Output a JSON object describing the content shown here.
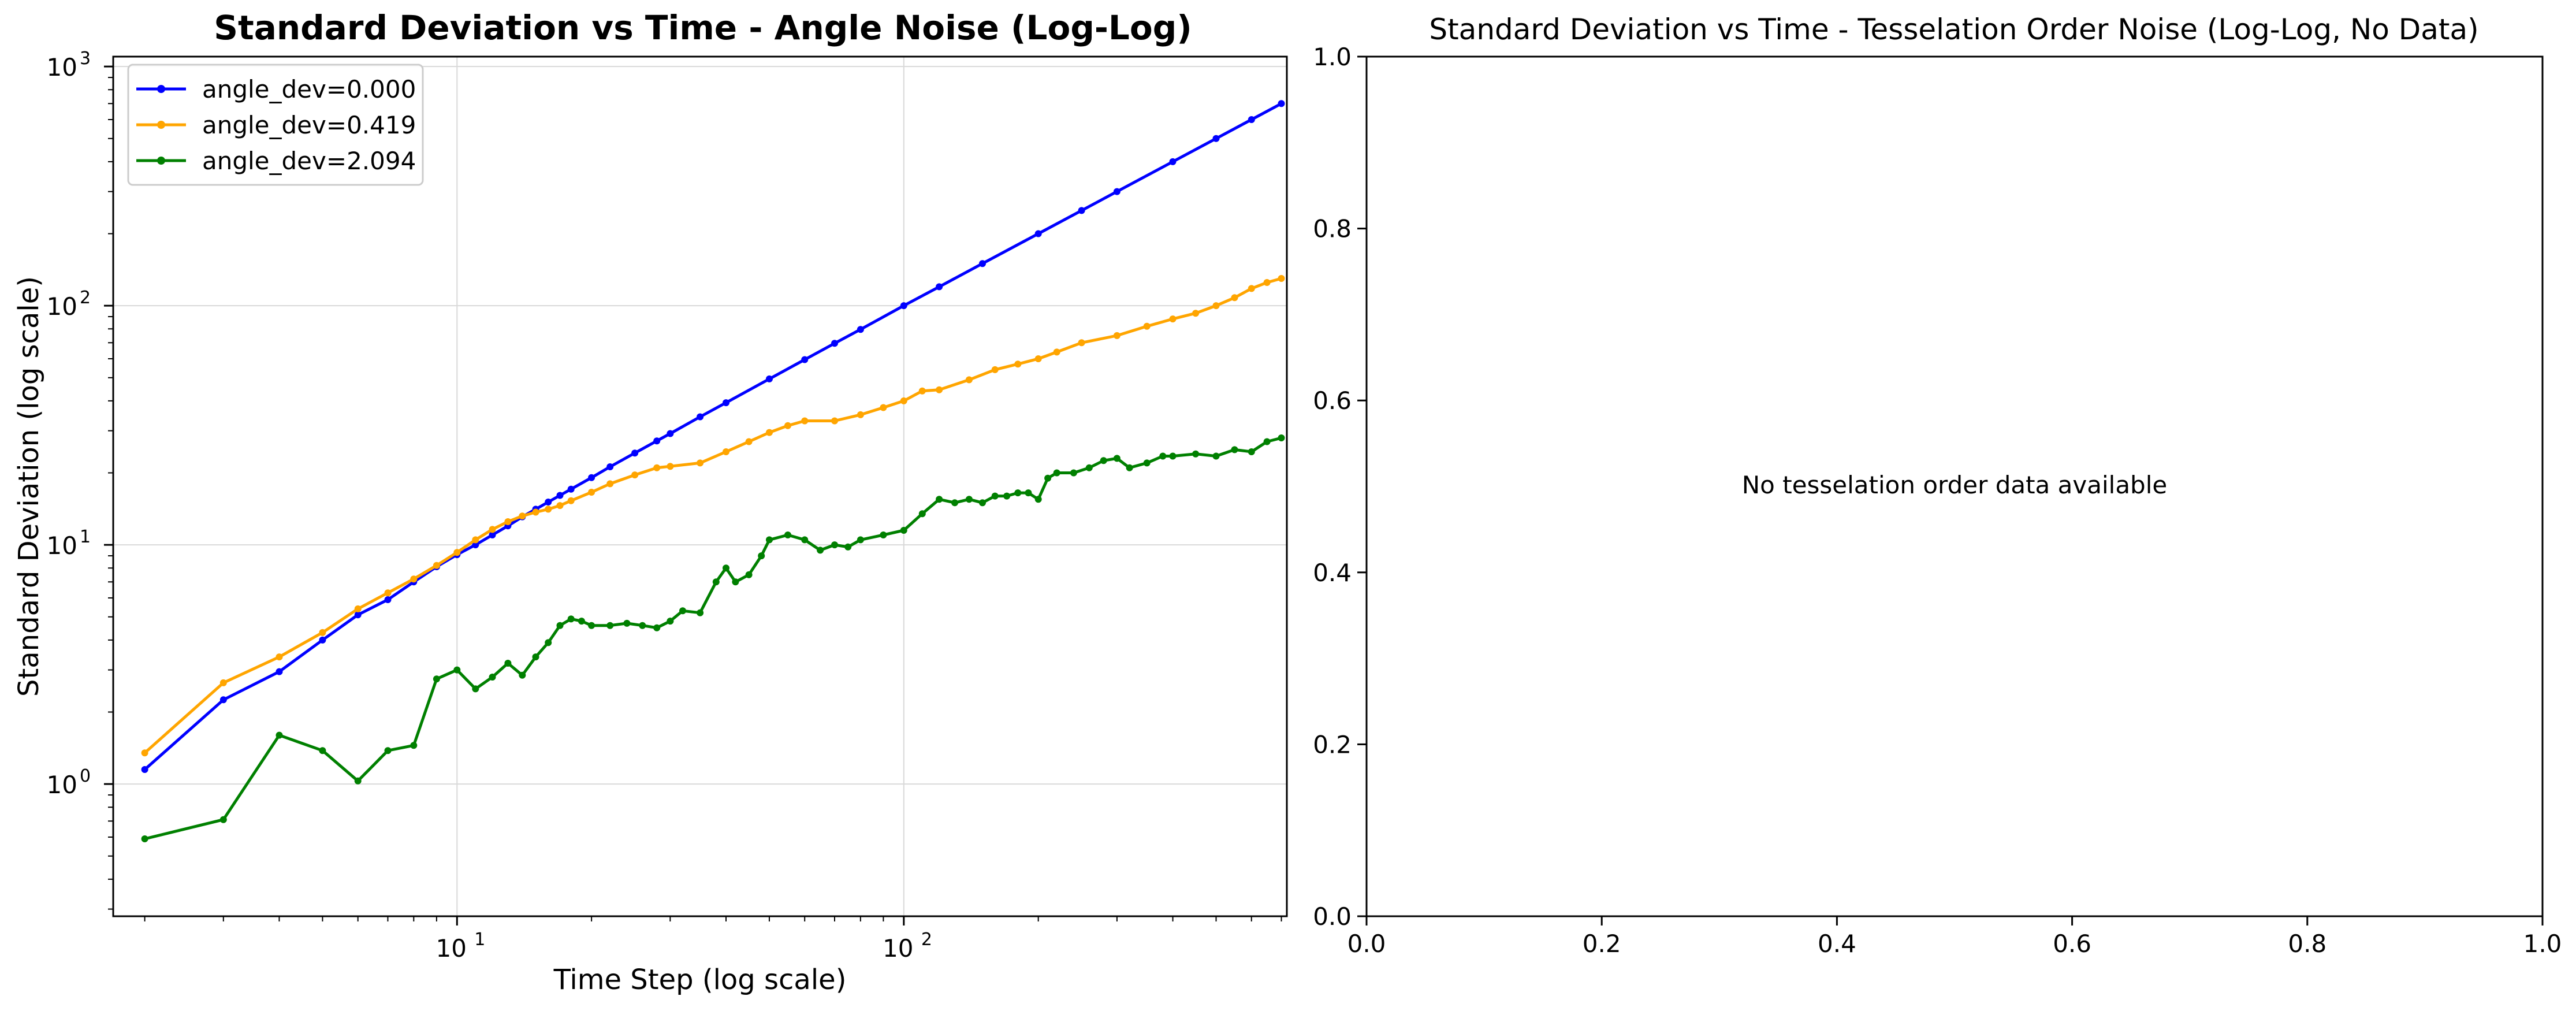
{
  "chart_data": [
    {
      "type": "line",
      "title": "Standard Deviation vs Time - Angle Noise (Log-Log)",
      "xlabel": "Time Step (log scale)",
      "ylabel": "Standard Deviation (log scale)",
      "xscale": "log",
      "yscale": "log",
      "xlim": [
        1.7,
        720
      ],
      "ylim": [
        0.28,
        1100
      ],
      "x_ticks": [
        {
          "value": 10,
          "base": "10",
          "exp": "1"
        },
        {
          "value": 100,
          "base": "10",
          "exp": "2"
        }
      ],
      "y_ticks": [
        {
          "value": 1,
          "base": "10",
          "exp": "0"
        },
        {
          "value": 10,
          "base": "10",
          "exp": "1"
        },
        {
          "value": 100,
          "base": "10",
          "exp": "2"
        },
        {
          "value": 1000,
          "base": "10",
          "exp": "3"
        }
      ],
      "grid": true,
      "legend_position": "top-left",
      "series": [
        {
          "name": "angle_dev=0.000",
          "color": "#0000ff",
          "x": [
            2,
            3,
            4,
            5,
            6,
            7,
            8,
            9,
            10,
            11,
            12,
            13,
            14,
            15,
            16,
            17,
            18,
            20,
            22,
            25,
            28,
            30,
            35,
            40,
            50,
            60,
            70,
            80,
            100,
            120,
            150,
            200,
            250,
            300,
            400,
            500,
            600,
            700
          ],
          "y": [
            1.15,
            2.25,
            2.95,
            4.0,
            5.1,
            5.9,
            7.0,
            8.1,
            9.1,
            10.0,
            11.0,
            12.0,
            13.1,
            14.1,
            15.1,
            16.1,
            17.1,
            19.1,
            21.2,
            24.2,
            27.2,
            29.2,
            34.3,
            39.3,
            49.4,
            59.5,
            69.6,
            79.6,
            100.0,
            120.0,
            150.0,
            200.0,
            250.0,
            300.0,
            400.0,
            500.0,
            600.0,
            700.0
          ]
        },
        {
          "name": "angle_dev=0.419",
          "color": "#ffa500",
          "x": [
            2,
            3,
            4,
            5,
            6,
            7,
            8,
            9,
            10,
            11,
            12,
            13,
            14,
            15,
            16,
            17,
            18,
            20,
            22,
            25,
            28,
            30,
            35,
            40,
            45,
            50,
            55,
            60,
            70,
            80,
            90,
            100,
            110,
            120,
            140,
            160,
            180,
            200,
            220,
            250,
            300,
            350,
            400,
            450,
            500,
            550,
            600,
            650,
            700
          ],
          "y": [
            1.35,
            2.65,
            3.4,
            4.3,
            5.4,
            6.3,
            7.2,
            8.2,
            9.3,
            10.5,
            11.6,
            12.5,
            13.2,
            13.7,
            14.1,
            14.6,
            15.3,
            16.6,
            18.0,
            19.6,
            21.0,
            21.3,
            22.0,
            24.5,
            27.0,
            29.5,
            31.5,
            33.0,
            33.0,
            35.0,
            37.5,
            40.0,
            44.0,
            44.5,
            49.0,
            54.0,
            57.0,
            60.0,
            64.0,
            70.0,
            75.0,
            82.0,
            88.0,
            93.0,
            100.0,
            108.0,
            118.0,
            125.0,
            130.0
          ]
        },
        {
          "name": "angle_dev=2.094",
          "color": "#008000",
          "x": [
            2,
            3,
            4,
            5,
            6,
            7,
            8,
            9,
            10,
            11,
            12,
            13,
            14,
            15,
            16,
            17,
            18,
            19,
            20,
            22,
            24,
            26,
            28,
            30,
            32,
            35,
            38,
            40,
            42,
            45,
            48,
            50,
            55,
            60,
            65,
            70,
            75,
            80,
            90,
            100,
            110,
            120,
            130,
            140,
            150,
            160,
            170,
            180,
            190,
            200,
            210,
            220,
            240,
            260,
            280,
            300,
            320,
            350,
            380,
            400,
            450,
            500,
            550,
            600,
            650,
            700
          ],
          "y": [
            0.59,
            0.71,
            1.6,
            1.38,
            1.03,
            1.38,
            1.45,
            2.75,
            3.0,
            2.5,
            2.8,
            3.2,
            2.85,
            3.4,
            3.9,
            4.6,
            4.9,
            4.8,
            4.6,
            4.6,
            4.7,
            4.6,
            4.5,
            4.8,
            5.3,
            5.2,
            7.0,
            8.0,
            7.0,
            7.5,
            9.0,
            10.5,
            11.0,
            10.5,
            9.5,
            10.0,
            9.8,
            10.5,
            11.0,
            11.5,
            13.5,
            15.5,
            15.0,
            15.5,
            15.0,
            16.0,
            16.0,
            16.5,
            16.5,
            15.5,
            19.0,
            20.0,
            20.0,
            21.0,
            22.5,
            23.0,
            21.0,
            22.0,
            23.5,
            23.5,
            24.0,
            23.5,
            25.0,
            24.5,
            27.0,
            28.0
          ]
        }
      ]
    },
    {
      "type": "line",
      "title": "Standard Deviation vs Time - Tesselation Order Noise (Log-Log, No Data)",
      "xlabel": "",
      "ylabel": "",
      "xlim": [
        0.0,
        1.0
      ],
      "ylim": [
        0.0,
        1.0
      ],
      "x_ticks": [
        "0.0",
        "0.2",
        "0.4",
        "0.6",
        "0.8",
        "1.0"
      ],
      "y_ticks": [
        "0.0",
        "0.2",
        "0.4",
        "0.6",
        "0.8",
        "1.0"
      ],
      "grid": false,
      "annotation": "No tesselation order data available",
      "series": []
    }
  ]
}
